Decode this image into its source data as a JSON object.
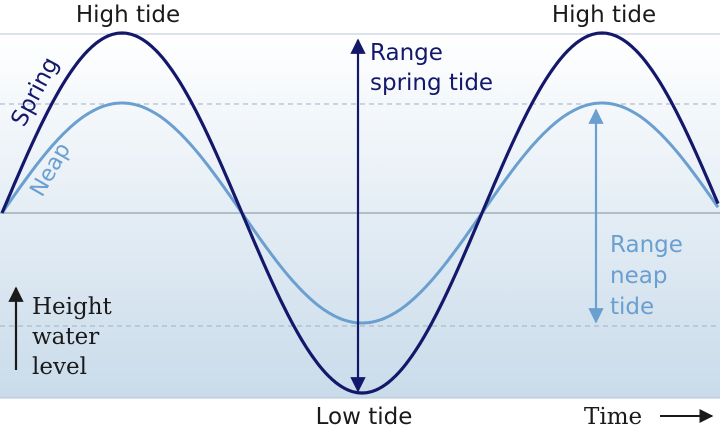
{
  "labels": {
    "high_tide_left": "High tide",
    "high_tide_right": "High tide",
    "low_tide": "Low tide",
    "spring": "Spring",
    "neap": "Neap",
    "range_spring_line1": "Range",
    "range_spring_line2": "spring tide",
    "range_neap_line1": "Range",
    "range_neap_line2": "neap",
    "range_neap_line3": "tide",
    "height_line1": "Height",
    "height_line2": "water",
    "height_line3": "level",
    "time": "Time"
  },
  "colors": {
    "spring": "#14186b",
    "neap": "#6a9fd0",
    "mean_line": "#8fa3b8",
    "dashed": "#9db0c4",
    "bg_top": "#ffffff",
    "bg_bottom": "#c9dbea",
    "text": "#1a1a1a"
  }
}
